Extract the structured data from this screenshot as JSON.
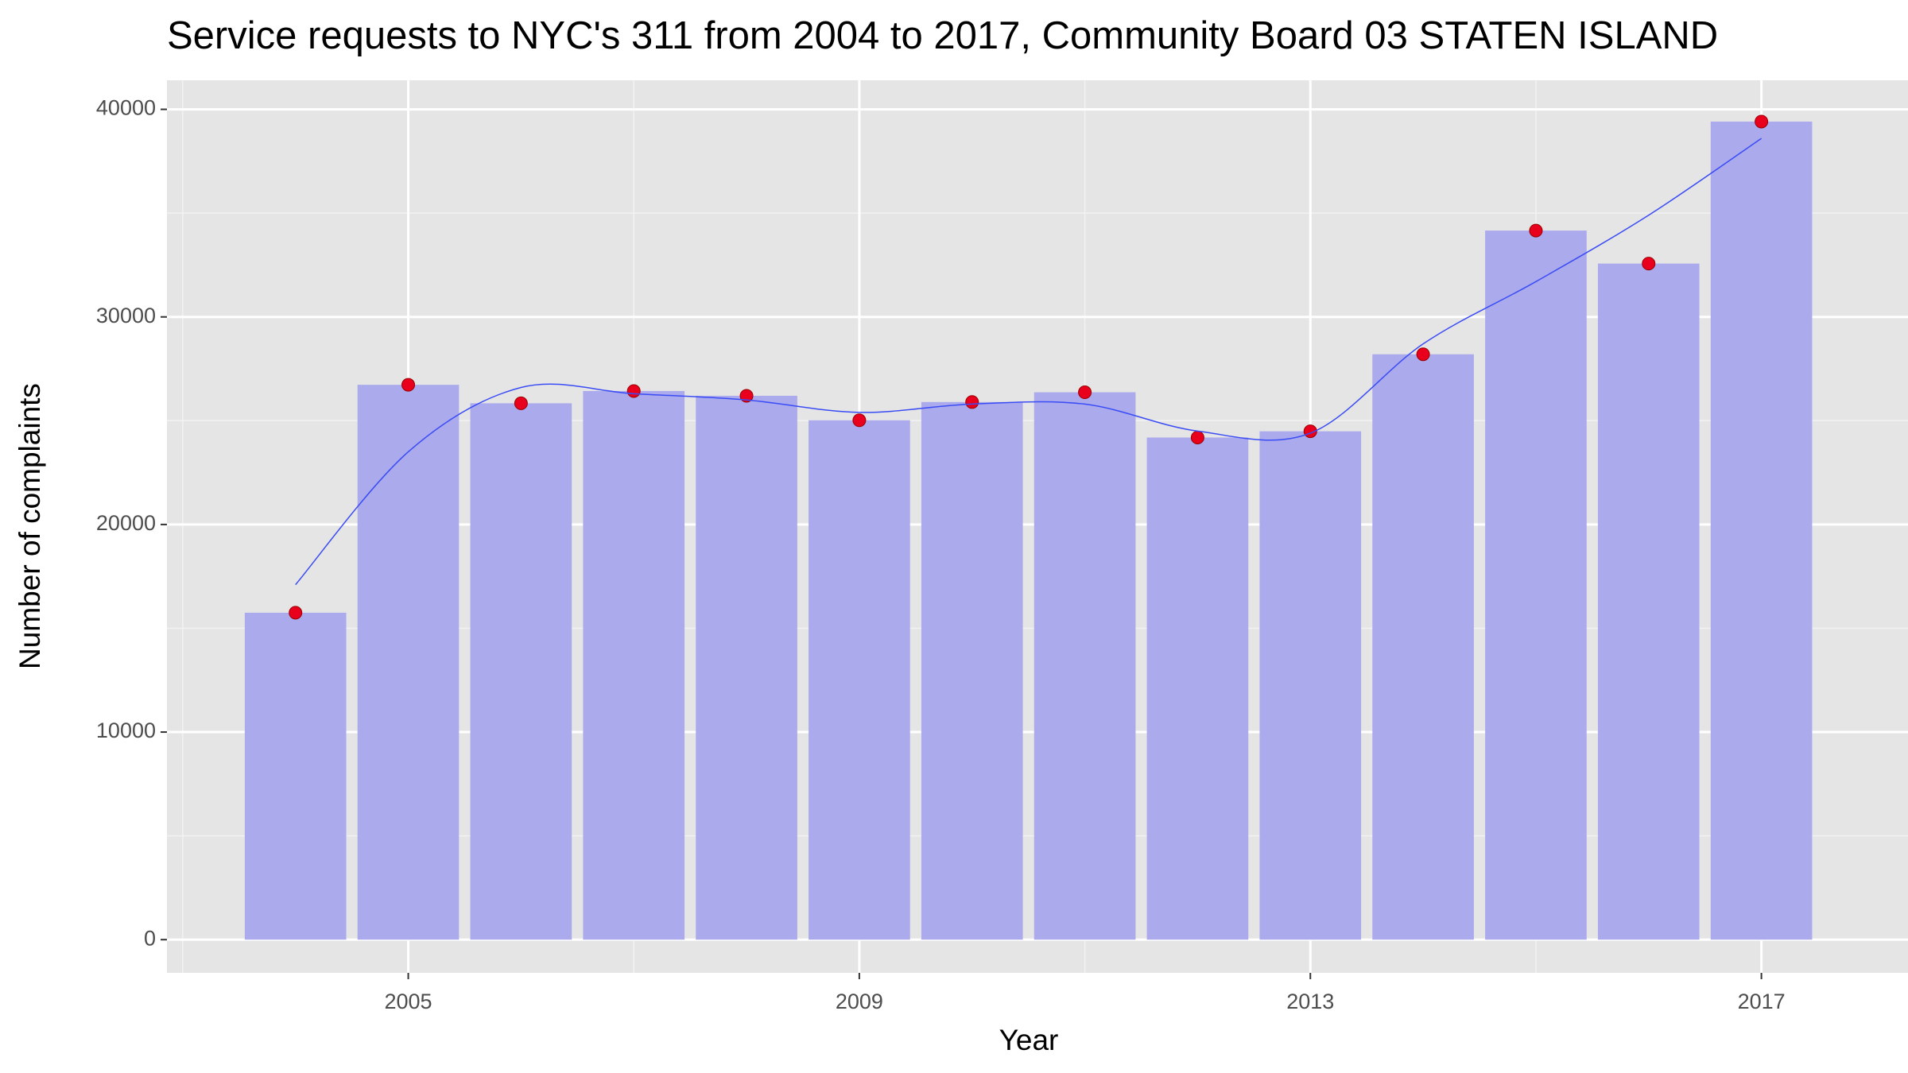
{
  "chart_data": {
    "type": "bar",
    "title": "Service requests to NYC's 311 from 2004 to 2017, Community Board 03 STATEN ISLAND",
    "x_label": "Year",
    "y_label": "Number of complaints",
    "x": [
      2004,
      2005,
      2006,
      2007,
      2008,
      2009,
      2010,
      2011,
      2012,
      2013,
      2014,
      2015,
      2016,
      2017
    ],
    "series": [
      {
        "type": "bar",
        "color": "#abaaec",
        "values": [
          15750,
          26730,
          25840,
          26430,
          26200,
          25020,
          25900,
          26370,
          24190,
          24490,
          28200,
          34160,
          32570,
          39410
        ]
      },
      {
        "type": "scatter",
        "color": "#e8001c",
        "values": [
          15750,
          26730,
          25840,
          26430,
          26200,
          25020,
          25900,
          26370,
          24190,
          24490,
          28200,
          34160,
          32570,
          39410
        ]
      },
      {
        "type": "line",
        "color": "#3a4cf5",
        "values": [
          17100,
          23500,
          26600,
          26300,
          26000,
          25400,
          25800,
          25800,
          24500,
          24400,
          28700,
          31700,
          34900,
          38600
        ]
      }
    ],
    "xlim": [
      2002.86,
      2018.3
    ],
    "xticks": [
      2005,
      2009,
      2013,
      2017
    ],
    "ylim": [
      -1600,
      41400
    ],
    "yticks": [
      0,
      10000,
      20000,
      30000,
      40000
    ],
    "grid": true
  }
}
